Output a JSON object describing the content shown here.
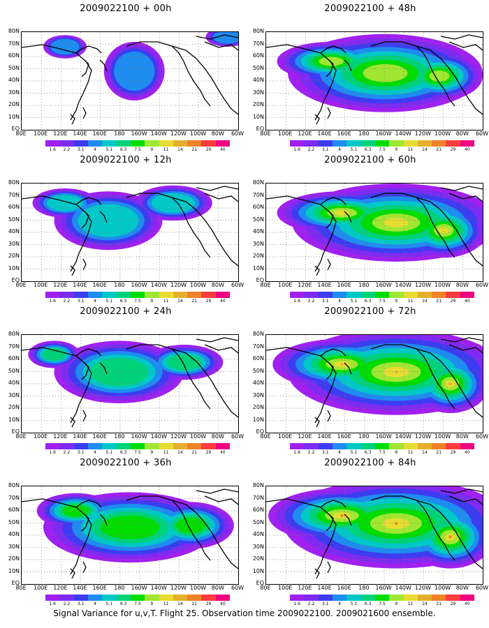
{
  "panels": [
    {
      "title": "2009022100 + 00h",
      "level": 0
    },
    {
      "title": "2009022100 + 48h",
      "level": 4
    },
    {
      "title": "2009022100 + 12h",
      "level": 1
    },
    {
      "title": "2009022100 + 60h",
      "level": 5
    },
    {
      "title": "2009022100 + 24h",
      "level": 2
    },
    {
      "title": "2009022100 + 72h",
      "level": 6
    },
    {
      "title": "2009022100 + 36h",
      "level": 3
    },
    {
      "title": "2009022100 + 84h",
      "level": 7
    }
  ],
  "lat_labels": [
    "80N",
    "70N",
    "60N",
    "50N",
    "40N",
    "30N",
    "20N",
    "10N",
    "EQ"
  ],
  "lon_labels": [
    "80E",
    "100E",
    "120E",
    "140E",
    "160E",
    "180",
    "160W",
    "140W",
    "120W",
    "100W",
    "80W",
    "60W"
  ],
  "colorbar": {
    "values": [
      "1.6",
      "2.2",
      "3.1",
      "4",
      "5.1",
      "6.3",
      "7.5",
      "9",
      "11",
      "14",
      "21",
      "29",
      "40"
    ],
    "colors": [
      "#a020f0",
      "#7d2bf0",
      "#3c3cf0",
      "#1e8cf0",
      "#00c8c8",
      "#00d27a",
      "#00dc00",
      "#a0e632",
      "#e6dc32",
      "#e6af2d",
      "#f08228",
      "#fa3c3c",
      "#f00082"
    ]
  },
  "caption": "Signal Variance for u,v,T. Flight 25. Observation time 2009022100. 2009021600 ensemble."
}
